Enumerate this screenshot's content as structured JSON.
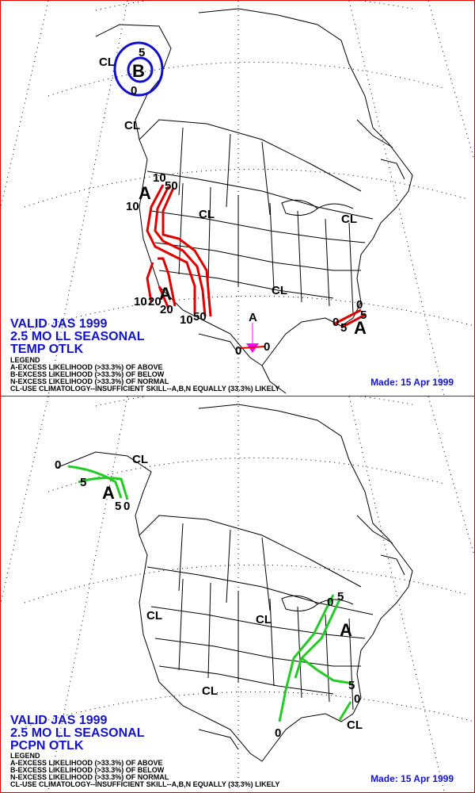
{
  "temp_panel": {
    "valid_line1": "VALID JAS 1999",
    "valid_line2": "2.5 MO LL SEASONAL",
    "valid_line3": "TEMP OTLK",
    "legend_title": "LEGEND",
    "legend_a": "A-EXCESS LIKELIHOOD (>33.3%) OF ABOVE",
    "legend_b": "B-EXCESS LIKELIHOOD (>33.3%) OF BELOW",
    "legend_n": "N-EXCESS LIKELIHOOD (>33.3%) OF NORMAL",
    "legend_cl": "CL-USE CLIMATOLOGY--INSUFFICIENT SKILL--A,B,N EQUALLY (33.3%) LIKELY",
    "made": "Made: 15 Apr 1999",
    "contour_color": "#e00000",
    "below_color": "#1010cc",
    "marker_color": "#ff00ff",
    "labels": {
      "cl_alaska": "CL",
      "b_alaska": "B",
      "b5": "5",
      "b0": "0",
      "cl_bc": "CL",
      "a_nw": "A",
      "nw10a": "10",
      "nw50": "50",
      "nw10b": "10",
      "cl_central": "CL",
      "cl_east": "CL",
      "cl_south": "CL",
      "a_sw": "A",
      "sw10": "10",
      "sw20a": "20",
      "sw20b": "20",
      "sw10b": "10",
      "sw50": "50",
      "a_tx": "A",
      "tx0a": "0",
      "tx0b": "0",
      "fl0a": "0",
      "fl5a": "5",
      "fl0b": "0",
      "fl5b": "5",
      "a_fl": "A"
    }
  },
  "pcpn_panel": {
    "valid_line1": "VALID JAS 1999",
    "valid_line2": "2.5 MO LL SEASONAL",
    "valid_line3": "PCPN OTLK",
    "legend_title": "LEGEND",
    "legend_a": "A-EXCESS LIKELIHOOD (>33.3%) OF ABOVE",
    "legend_b": "B-EXCESS LIKELIHOOD (>33.3%) OF BELOW",
    "legend_n": "N-EXCESS LIKELIHOOD (>33.3%) OF NORMAL",
    "legend_cl": "CL-USE CLIMATOLOGY--INSUFFICIENT SKILL--A,B,N EQUALLY (33.3%) LIKELY",
    "made": "Made: 15 Apr 1999",
    "contour_color": "#22cc22",
    "labels": {
      "ak0": "0",
      "ak5": "5",
      "a_ak": "A",
      "ak5b": "5",
      "ak0b": "0",
      "cl_alaska": "CL",
      "cl_west": "CL",
      "cl_mid": "CL",
      "cl_south": "CL",
      "ne0": "0",
      "ne5": "5",
      "a_east": "A",
      "se5": "5",
      "se0": "0",
      "gulf0": "0",
      "cl_fl": "CL"
    }
  }
}
